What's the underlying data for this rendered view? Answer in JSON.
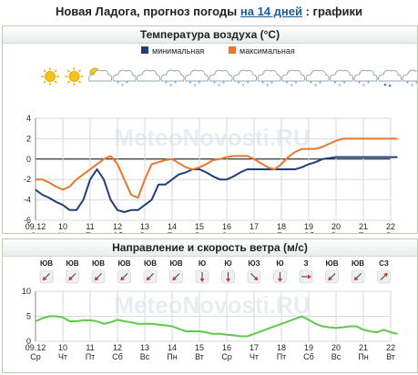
{
  "page": {
    "title_prefix": "Новая Ладога, прогноз погоды ",
    "title_link": "на 14 дней",
    "title_suffix": " : графики",
    "watermark": "MeteoNovosti.RU"
  },
  "temperature_panel": {
    "title": "Температура воздуха (°C)",
    "legend_min": "минимальная",
    "legend_max": "максимальная",
    "colors": {
      "min": "#1f3f78",
      "max": "#e8762b",
      "grid": "#dadada",
      "zero": "#000000"
    },
    "weather_icons": [
      "sun-icon",
      "sun-icon",
      "sun-cloud-icon",
      "cloud-snow-icon",
      "cloud-icon",
      "cloud-snow-icon",
      "cloud-snow-icon",
      "cloud-snow-icon",
      "cloud-snow-icon",
      "cloud-snow-icon",
      "cloud-snow-icon",
      "cloud-snow-icon",
      "cloud-snow-icon",
      "cloud-snow-icon",
      "cloud-rain-icon",
      "cloud-snow-icon"
    ]
  },
  "wind_panel": {
    "title": "Направление и скорость ветра (м/с)",
    "directions": [
      "ЮВ",
      "ЮВ",
      "ЮВ",
      "ЮВ",
      "ЮВ",
      "ЮВ",
      "Ю",
      "Ю",
      "ЮЗ",
      "Ю",
      "З",
      "ЮВ",
      "ЮВ",
      "СЗ"
    ],
    "colors": {
      "line": "#5ec94a",
      "grid": "#dadada"
    }
  },
  "chart_data": [
    {
      "type": "line",
      "title": "Температура воздуха (°C)",
      "categories": [
        "09.12",
        "10",
        "11",
        "12",
        "13",
        "14",
        "15",
        "16",
        "17",
        "18",
        "19",
        "20",
        "21",
        "22"
      ],
      "weekdays": [
        "Ср",
        "Чт",
        "Пт",
        "Сб",
        "Вс",
        "Пн",
        "Вт",
        "Ср",
        "Чт",
        "Пт",
        "Сб",
        "Вс",
        "Пн",
        "Вт"
      ],
      "x": [
        0,
        0.25,
        0.5,
        0.75,
        1,
        1.25,
        1.5,
        1.75,
        2,
        2.25,
        2.5,
        2.75,
        3,
        3.25,
        3.5,
        3.75,
        4,
        4.25,
        4.5,
        4.75,
        5,
        5.25,
        5.5,
        5.75,
        6,
        6.25,
        6.5,
        6.75,
        7,
        7.25,
        7.5,
        7.75,
        8,
        8.25,
        8.5,
        8.75,
        9,
        9.25,
        9.5,
        9.75,
        10,
        10.25,
        10.5,
        10.75,
        11,
        11.25,
        11.5,
        11.75,
        12,
        12.25,
        12.5,
        12.75,
        13,
        13.25
      ],
      "series": [
        {
          "name": "минимальная",
          "values": [
            -3,
            -3.5,
            -3.8,
            -4.2,
            -4.5,
            -5,
            -5,
            -4,
            -2,
            -1,
            -2,
            -4,
            -5,
            -5.2,
            -5,
            -5,
            -4.5,
            -4,
            -2.5,
            -2.5,
            -2,
            -1.5,
            -1.3,
            -1,
            -1,
            -1.3,
            -1.7,
            -2,
            -2,
            -1.7,
            -1.3,
            -1,
            -1,
            -1,
            -1,
            -1,
            -1,
            -1,
            -1,
            -0.8,
            -0.5,
            -0.3,
            0,
            0.1,
            0.2,
            0.2,
            0.2,
            0.2,
            0.2,
            0.2,
            0.2,
            0.2,
            0.2,
            0.2
          ]
        },
        {
          "name": "максимальная",
          "values": [
            -2,
            -2,
            -2.3,
            -2.7,
            -3,
            -2.7,
            -2,
            -1.5,
            -1,
            -0.5,
            0,
            0.3,
            -0.5,
            -2,
            -3.5,
            -3.8,
            -2,
            -0.5,
            -0.3,
            -0.1,
            0,
            -0.4,
            -0.8,
            -1,
            -0.8,
            -0.5,
            -0.1,
            0,
            0.2,
            0.3,
            0.3,
            0.3,
            0,
            -0.4,
            -0.8,
            -1,
            -0.5,
            0.2,
            0.7,
            1,
            1,
            1,
            1.2,
            1.5,
            1.8,
            2,
            2,
            2,
            2,
            2,
            2,
            2,
            2,
            2
          ]
        }
      ],
      "ylim": [
        -6,
        4
      ],
      "yticks": [
        4,
        2,
        0,
        -2,
        -4,
        -6
      ],
      "grid": true,
      "legend": "top-center"
    },
    {
      "type": "line",
      "title": "Направление и скорость ветра (м/с)",
      "categories": [
        "09.12",
        "10",
        "11",
        "12",
        "13",
        "14",
        "15",
        "16",
        "17",
        "18",
        "19",
        "20",
        "21",
        "22"
      ],
      "weekdays": [
        "Ср",
        "Чт",
        "Пт",
        "Сб",
        "Вс",
        "Пн",
        "Вт",
        "Ср",
        "Чт",
        "Пт",
        "Сб",
        "Вс",
        "Пн",
        "Вт"
      ],
      "x": [
        0,
        0.25,
        0.5,
        0.75,
        1,
        1.25,
        1.5,
        1.75,
        2,
        2.25,
        2.5,
        2.75,
        3,
        3.25,
        3.5,
        3.75,
        4,
        4.25,
        4.5,
        4.75,
        5,
        5.25,
        5.5,
        5.75,
        6,
        6.25,
        6.5,
        6.75,
        7,
        7.25,
        7.5,
        7.75,
        8,
        8.25,
        8.5,
        8.75,
        9,
        9.25,
        9.5,
        9.75,
        10,
        10.25,
        10.5,
        10.75,
        11,
        11.25,
        11.5,
        11.75,
        12,
        12.25,
        12.5,
        12.75,
        13,
        13.25
      ],
      "series": [
        {
          "name": "",
          "values": [
            4,
            4.6,
            5,
            5,
            4.8,
            4,
            4,
            4.2,
            4.2,
            4,
            3.5,
            3.8,
            4.3,
            4,
            3.8,
            3.5,
            3.5,
            3.5,
            3.3,
            3.2,
            3,
            2.5,
            2,
            2,
            2,
            1.8,
            1.5,
            1.5,
            1.3,
            1.2,
            1,
            1,
            1.5,
            2,
            2.5,
            3,
            3.5,
            4,
            4.5,
            5,
            4.3,
            3.5,
            3,
            2.8,
            2.7,
            2.8,
            3,
            3,
            2.3,
            2,
            1.8,
            2.3,
            1.8,
            1.5
          ]
        }
      ],
      "ylim": [
        0,
        10
      ],
      "yticks": [
        10,
        5,
        0
      ],
      "grid": true
    }
  ]
}
